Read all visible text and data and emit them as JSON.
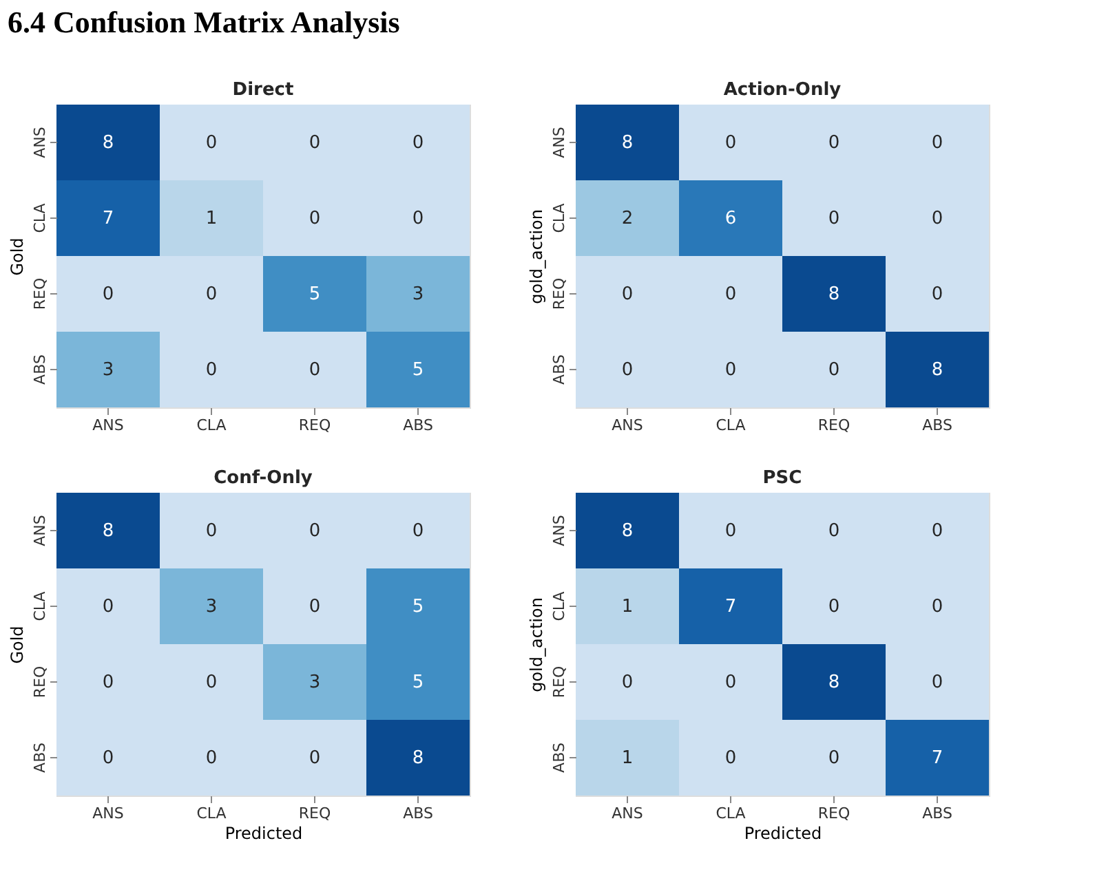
{
  "chart_data": [
    {
      "type": "heatmap",
      "title": "Direct",
      "ylabel": "Gold",
      "annotations": [
        "6.4   Confusion Matrix Analysis"
      ],
      "categories": [
        "ANS",
        "CLA",
        "REQ",
        "ABS"
      ],
      "y_categories": [
        "ANS",
        "CLA",
        "REQ",
        "ABS"
      ],
      "cells": [
        [
          8,
          0,
          0,
          0
        ],
        [
          7,
          1,
          0,
          0
        ],
        [
          0,
          0,
          5,
          3
        ],
        [
          3,
          0,
          0,
          5
        ]
      ],
      "data_labels": true,
      "legend": false
    },
    {
      "type": "heatmap",
      "title": "Action-Only",
      "ylabel": "gold_action",
      "categories": [
        "ANS",
        "CLA",
        "REQ",
        "ABS"
      ],
      "y_categories": [
        "ANS",
        "CLA",
        "REQ",
        "ABS"
      ],
      "cells": [
        [
          8,
          0,
          0,
          0
        ],
        [
          2,
          6,
          0,
          0
        ],
        [
          0,
          0,
          8,
          0
        ],
        [
          0,
          0,
          0,
          8
        ]
      ],
      "data_labels": true,
      "legend": false
    },
    {
      "type": "heatmap",
      "title": "Conf-Only",
      "xlabel": "Predicted",
      "ylabel": "Gold",
      "categories": [
        "ANS",
        "CLA",
        "REQ",
        "ABS"
      ],
      "y_categories": [
        "ANS",
        "CLA",
        "REQ",
        "ABS"
      ],
      "cells": [
        [
          8,
          0,
          0,
          0
        ],
        [
          0,
          3,
          0,
          5
        ],
        [
          0,
          0,
          3,
          5
        ],
        [
          0,
          0,
          0,
          8
        ]
      ],
      "data_labels": true,
      "legend": false
    },
    {
      "type": "heatmap",
      "title": "PSC",
      "xlabel": "Predicted",
      "ylabel": "gold_action",
      "categories": [
        "ANS",
        "CLA",
        "REQ",
        "ABS"
      ],
      "y_categories": [
        "ANS",
        "CLA",
        "REQ",
        "ABS"
      ],
      "cells": [
        [
          8,
          0,
          0,
          0
        ],
        [
          1,
          7,
          0,
          0
        ],
        [
          0,
          0,
          8,
          0
        ],
        [
          1,
          0,
          0,
          7
        ]
      ],
      "data_labels": true,
      "legend": false
    }
  ]
}
